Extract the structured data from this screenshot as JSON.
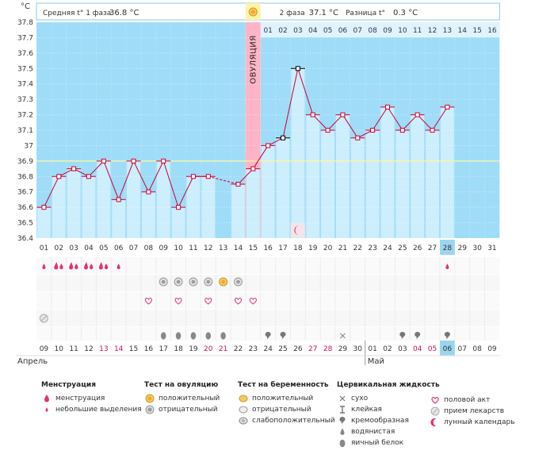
{
  "chart_data": {
    "type": "line",
    "title": "",
    "y_unit": "°C",
    "ylim": [
      36.4,
      37.8
    ],
    "yticks": [
      "36.4",
      "36.5",
      "36.6",
      "36.7",
      "36.8",
      "36.9",
      "37",
      "37.1",
      "37.2",
      "37.3",
      "37.4",
      "37.5",
      "37.6",
      "37.7",
      "37.8"
    ],
    "phase1_label": "Средняя t° 1 фаза",
    "phase1_value": "36.8 °C",
    "phase2_label": "2 фаза",
    "phase2_value": "37.1 °C",
    "diff_label": "Разница t°",
    "diff_value": "0.3 °C",
    "ovulation_label": "ОВУЛЯЦИЯ",
    "ovulation_day": 15,
    "cover_line": 36.9,
    "cycle_days": [
      "01",
      "02",
      "03",
      "04",
      "05",
      "06",
      "07",
      "08",
      "09",
      "10",
      "11",
      "12",
      "13",
      "14",
      "15",
      "16",
      "17",
      "18",
      "19",
      "20",
      "21",
      "22",
      "23",
      "24",
      "25",
      "26",
      "27",
      "28",
      "29",
      "30",
      "31"
    ],
    "phase2_days": [
      "01",
      "02",
      "03",
      "04",
      "05",
      "06",
      "07",
      "08",
      "09",
      "10",
      "11",
      "12",
      "13",
      "14",
      "15",
      "16"
    ],
    "series": [
      {
        "values": [
          36.6,
          36.8,
          36.85,
          36.8,
          36.9,
          36.65,
          36.9,
          36.7,
          36.9,
          36.6,
          36.8,
          36.8,
          null,
          36.75,
          36.85,
          37.0,
          37.05,
          37.5,
          37.2,
          37.1,
          37.2,
          37.05,
          37.1,
          37.25,
          37.1,
          37.2,
          37.1,
          37.25,
          null,
          null,
          null
        ]
      }
    ],
    "highlight_day": "28",
    "highlight_date": "06",
    "pink_day": "15",
    "calendar_dates": [
      "09",
      "10",
      "11",
      "12",
      "13",
      "14",
      "15",
      "16",
      "17",
      "18",
      "19",
      "20",
      "21",
      "22",
      "23",
      "24",
      "25",
      "26",
      "27",
      "28",
      "29",
      "30",
      "01",
      "02",
      "03",
      "04",
      "05",
      "06",
      "07",
      "08",
      "09"
    ],
    "red_date_indexes": [
      4,
      5,
      11,
      12,
      18,
      19,
      25,
      26
    ],
    "month_start": "Апрель",
    "month_next": "Май",
    "rows": {
      "menstruation": [
        {
          "day": 1,
          "type": "light"
        },
        {
          "day": 2,
          "type": "heavy"
        },
        {
          "day": 3,
          "type": "heavy"
        },
        {
          "day": 4,
          "type": "heavy"
        },
        {
          "day": 5,
          "type": "heavy"
        },
        {
          "day": 6,
          "type": "light"
        },
        {
          "day": 28,
          "type": "light"
        }
      ],
      "ovulation_test": [
        {
          "day": 9,
          "type": "negative"
        },
        {
          "day": 10,
          "type": "negative"
        },
        {
          "day": 11,
          "type": "negative"
        },
        {
          "day": 12,
          "type": "negative"
        },
        {
          "day": 13,
          "type": "positive"
        },
        {
          "day": 14,
          "type": "negative"
        }
      ],
      "intercourse": [
        8,
        10,
        12,
        14,
        15
      ],
      "medication": [
        1
      ],
      "mucus": [
        {
          "day": 9,
          "type": "eggwhite"
        },
        {
          "day": 10,
          "type": "eggwhite"
        },
        {
          "day": 11,
          "type": "eggwhite"
        },
        {
          "day": 12,
          "type": "eggwhite"
        },
        {
          "day": 13,
          "type": "eggwhite"
        },
        {
          "day": 16,
          "type": "creamy"
        },
        {
          "day": 17,
          "type": "creamy"
        },
        {
          "day": 21,
          "type": "dry"
        },
        {
          "day": 25,
          "type": "creamy"
        },
        {
          "day": 26,
          "type": "creamy"
        },
        {
          "day": 28,
          "type": "creamy"
        }
      ],
      "moon": [
        18
      ]
    }
  },
  "legend": {
    "menstruation": {
      "title": "Менструация",
      "items": [
        "менструация",
        "небольшие выделения"
      ]
    },
    "ovulation_test": {
      "title": "Тест на овуляцию",
      "items": [
        "положительный",
        "отрицательный"
      ]
    },
    "pregnancy_test": {
      "title": "Тест на беременность",
      "items": [
        "положительный",
        "отрицательный",
        "слабоположительный"
      ]
    },
    "mucus": {
      "title": "Цервикальная жидкость",
      "items": [
        "сухо",
        "клейкая",
        "кремообразная",
        "водянистая",
        "яичный белок"
      ]
    },
    "other": {
      "items": [
        "половой акт",
        "прием лекарств",
        "лунный календарь"
      ]
    }
  },
  "colors": {
    "phase_bg": "#9fdcf7",
    "bar": "#cdeefc",
    "ovulation": "#fff3a6",
    "line": "#cc0033",
    "pink": "#ffb3c6",
    "highlight": "#9bd6ef"
  }
}
